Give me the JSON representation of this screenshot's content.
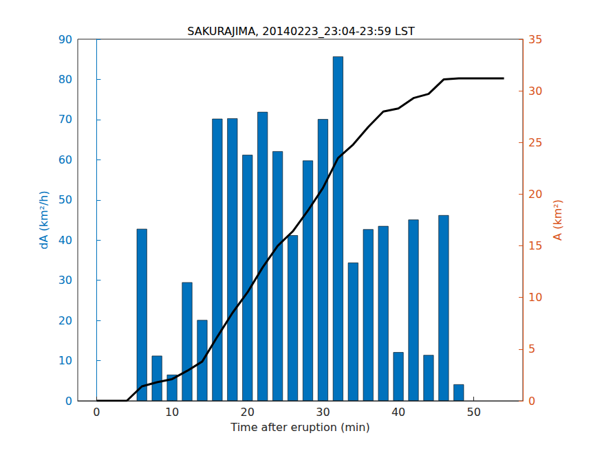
{
  "chart_data": {
    "type": "bar",
    "title": "SAKURAJIMA, 20140223_23:04-23:59 LST",
    "x_label": "Time after eruption (min)",
    "y_label": "dA (km²/h)",
    "y2_label": "A (km²)",
    "xlim": [
      -2.5,
      56.5
    ],
    "xticks": [
      0,
      10,
      20,
      30,
      40,
      50
    ],
    "ylim": [
      0,
      90
    ],
    "yticks": [
      0,
      10,
      20,
      30,
      40,
      50,
      60,
      70,
      80,
      90
    ],
    "y2lim": [
      0,
      35
    ],
    "y2ticks": [
      0,
      5,
      10,
      15,
      20,
      25,
      30,
      35
    ],
    "grid": false,
    "series": [
      {
        "type": "bar",
        "axis": "y",
        "color": "#0072bd",
        "x": [
          6,
          8,
          10,
          12,
          14,
          16,
          18,
          20,
          22,
          24,
          26,
          28,
          30,
          32,
          34,
          36,
          38,
          40,
          42,
          44,
          46,
          48
        ],
        "values": [
          42.8,
          11.2,
          6.5,
          29.5,
          20.1,
          70.2,
          70.3,
          61.2,
          71.9,
          62.1,
          41.2,
          59.8,
          70.1,
          85.7,
          34.4,
          42.7,
          43.5,
          12.1,
          45.1,
          11.4,
          46.2,
          4.1
        ]
      },
      {
        "type": "line",
        "axis": "y2",
        "color": "#000000",
        "line_style": "solid",
        "marker": "none",
        "x": [
          0,
          2,
          4,
          6,
          8,
          10,
          12,
          14,
          16,
          18,
          20,
          22,
          24,
          26,
          28,
          30,
          32,
          34,
          36,
          38,
          40,
          42,
          44,
          46,
          48,
          50,
          52,
          54
        ],
        "values": [
          0,
          0,
          0,
          1.4,
          1.8,
          2.1,
          2.9,
          3.8,
          6.2,
          8.5,
          10.5,
          12.9,
          15.0,
          16.4,
          18.4,
          20.6,
          23.5,
          24.8,
          26.5,
          28.0,
          28.3,
          29.3,
          29.7,
          31.1,
          31.2,
          31.2,
          31.2,
          31.2
        ]
      }
    ]
  }
}
